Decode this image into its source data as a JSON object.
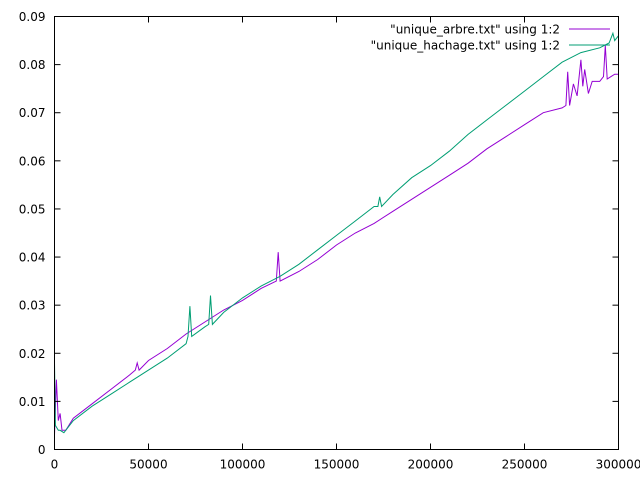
{
  "chart_data": {
    "type": "line",
    "title": "",
    "xlabel": "",
    "ylabel": "",
    "xlim": [
      0,
      300000
    ],
    "ylim": [
      0,
      0.09
    ],
    "x_ticks": [
      0,
      50000,
      100000,
      150000,
      200000,
      250000,
      300000
    ],
    "x_tick_labels": [
      "0",
      "50000",
      "100000",
      "150000",
      "200000",
      "250000",
      "300000"
    ],
    "y_ticks": [
      0,
      0.01,
      0.02,
      0.03,
      0.04,
      0.05,
      0.06,
      0.07,
      0.08,
      0.09
    ],
    "y_tick_labels": [
      "0",
      "0.01",
      "0.02",
      "0.03",
      "0.04",
      "0.05",
      "0.06",
      "0.07",
      "0.08",
      "0.09"
    ],
    "grid": false,
    "legend_position": "top-right",
    "series": [
      {
        "name": "\"unique_arbre.txt\" using 1:2",
        "color": "#9400d3",
        "x": [
          0,
          1000,
          2000,
          3000,
          4000,
          6000,
          10000,
          20000,
          30000,
          40000,
          43000,
          44000,
          45000,
          50000,
          60000,
          70000,
          80000,
          90000,
          100000,
          110000,
          118000,
          119000,
          120000,
          130000,
          140000,
          150000,
          160000,
          170000,
          180000,
          190000,
          200000,
          210000,
          220000,
          230000,
          240000,
          250000,
          260000,
          270000,
          272000,
          273000,
          274000,
          276000,
          278000,
          280000,
          281000,
          282000,
          284000,
          286000,
          290000,
          292000,
          293000,
          294000,
          296000,
          298000,
          300000
        ],
        "y": [
          0.003,
          0.0145,
          0.006,
          0.0075,
          0.004,
          0.004,
          0.0065,
          0.0095,
          0.0125,
          0.0155,
          0.0165,
          0.018,
          0.0165,
          0.0185,
          0.021,
          0.024,
          0.0265,
          0.029,
          0.031,
          0.0335,
          0.035,
          0.041,
          0.035,
          0.037,
          0.0395,
          0.0425,
          0.045,
          0.047,
          0.0495,
          0.052,
          0.0545,
          0.057,
          0.0595,
          0.0625,
          0.065,
          0.0675,
          0.07,
          0.071,
          0.0715,
          0.0785,
          0.0715,
          0.076,
          0.0735,
          0.081,
          0.0755,
          0.079,
          0.074,
          0.0765,
          0.0765,
          0.0775,
          0.084,
          0.077,
          0.0775,
          0.078,
          0.078
        ]
      },
      {
        "name": "\"unique_hachage.txt\" using 1:2",
        "color": "#009e73",
        "x": [
          0,
          500,
          2000,
          3000,
          5000,
          10000,
          20000,
          30000,
          40000,
          50000,
          60000,
          70000,
          71000,
          72000,
          73000,
          80000,
          82000,
          83000,
          84000,
          90000,
          100000,
          110000,
          120000,
          130000,
          140000,
          150000,
          160000,
          170000,
          172000,
          173000,
          174000,
          180000,
          190000,
          200000,
          210000,
          220000,
          230000,
          240000,
          250000,
          260000,
          270000,
          280000,
          290000,
          295000,
          297000,
          298000,
          300000
        ],
        "y": [
          0.018,
          0.005,
          0.004,
          0.004,
          0.0035,
          0.006,
          0.009,
          0.0115,
          0.014,
          0.0165,
          0.019,
          0.022,
          0.0235,
          0.0298,
          0.0235,
          0.0255,
          0.026,
          0.032,
          0.026,
          0.0285,
          0.0315,
          0.034,
          0.036,
          0.0385,
          0.0415,
          0.0445,
          0.0475,
          0.0505,
          0.0505,
          0.0525,
          0.0505,
          0.053,
          0.0565,
          0.059,
          0.062,
          0.0655,
          0.0685,
          0.0715,
          0.0745,
          0.0775,
          0.0805,
          0.0825,
          0.0835,
          0.0845,
          0.0865,
          0.085,
          0.086
        ]
      }
    ]
  }
}
